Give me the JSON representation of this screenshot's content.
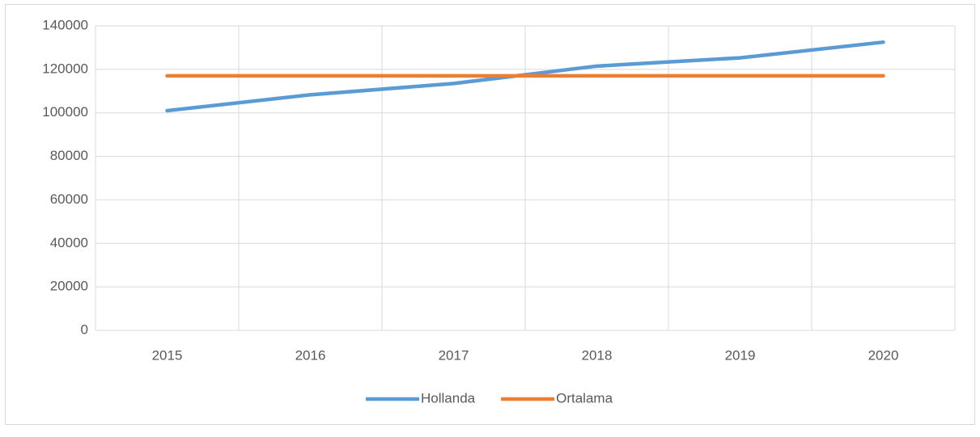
{
  "chart_data": {
    "type": "line",
    "categories": [
      "2015",
      "2016",
      "2017",
      "2018",
      "2019",
      "2020"
    ],
    "series": [
      {
        "name": "Hollanda",
        "color": "#5b9bd5",
        "values": [
          101000,
          108300,
          113500,
          121500,
          125300,
          132500
        ]
      },
      {
        "name": "Ortalama",
        "color": "#ed7d31",
        "values": [
          117000,
          117000,
          117000,
          117000,
          117000,
          117000
        ]
      }
    ],
    "ylim": [
      0,
      140000
    ],
    "yticks": [
      0,
      20000,
      40000,
      60000,
      80000,
      100000,
      120000,
      140000
    ],
    "grid": true,
    "legend": "bottom"
  }
}
